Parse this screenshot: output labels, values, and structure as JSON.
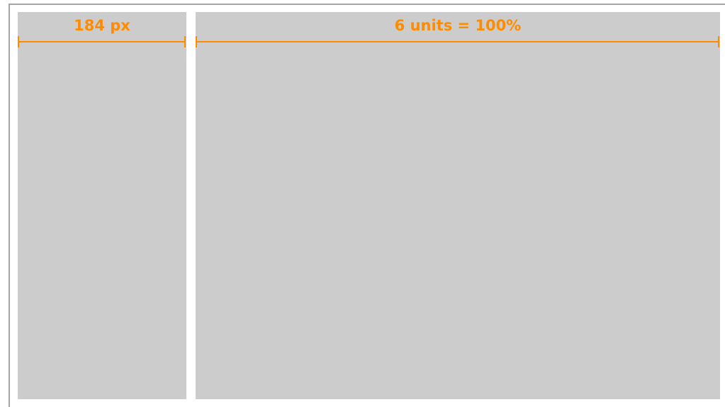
{
  "colors": {
    "accent": "#ff8c00",
    "column_fill": "#cccccc",
    "frame_border": "#a6a6a6",
    "background": "#ffffff"
  },
  "columns": {
    "left": {
      "label": "184 px"
    },
    "right": {
      "label": "6 units = 100%"
    }
  }
}
